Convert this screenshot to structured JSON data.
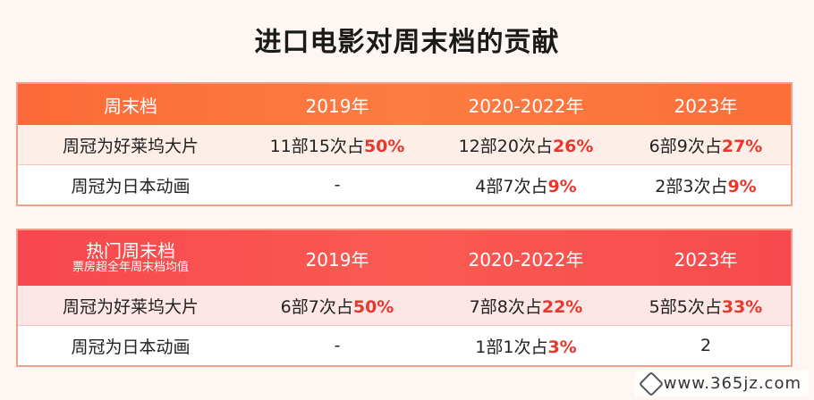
{
  "title": "进口电影对周末档的贡献",
  "table1": {
    "header": {
      "label": "周末档",
      "y2019": "2019年",
      "y2020": "2020-2022年",
      "y2023": "2023年"
    },
    "rows": [
      {
        "label": "周冠为好莱坞大片",
        "c2019": {
          "text": "11部15次占",
          "pct": "50%"
        },
        "c2020": {
          "text": "12部20次占",
          "pct": "26%"
        },
        "c2023": {
          "text": "6部9次占",
          "pct": "27%"
        }
      },
      {
        "label": "周冠为日本动画",
        "c2019": {
          "text": "-",
          "pct": ""
        },
        "c2020": {
          "text": "4部7次占",
          "pct": "9%"
        },
        "c2023": {
          "text": "2部3次占",
          "pct": "9%"
        }
      }
    ]
  },
  "table2": {
    "header": {
      "label": "热门周末档",
      "sublabel": "票房超全年周末档均值",
      "y2019": "2019年",
      "y2020": "2020-2022年",
      "y2023": "2023年"
    },
    "rows": [
      {
        "label": "周冠为好莱坞大片",
        "c2019": {
          "text": "6部7次占",
          "pct": "50%"
        },
        "c2020": {
          "text": "7部8次占",
          "pct": "22%"
        },
        "c2023": {
          "text": "5部5次占",
          "pct": "33%"
        }
      },
      {
        "label": "周冠为日本动画",
        "c2019": {
          "text": "-",
          "pct": ""
        },
        "c2020": {
          "text": "1部1次占",
          "pct": "3%"
        },
        "c2023": {
          "text": "2",
          "pct": ""
        }
      }
    ]
  },
  "watermark": "www.365jz.com"
}
